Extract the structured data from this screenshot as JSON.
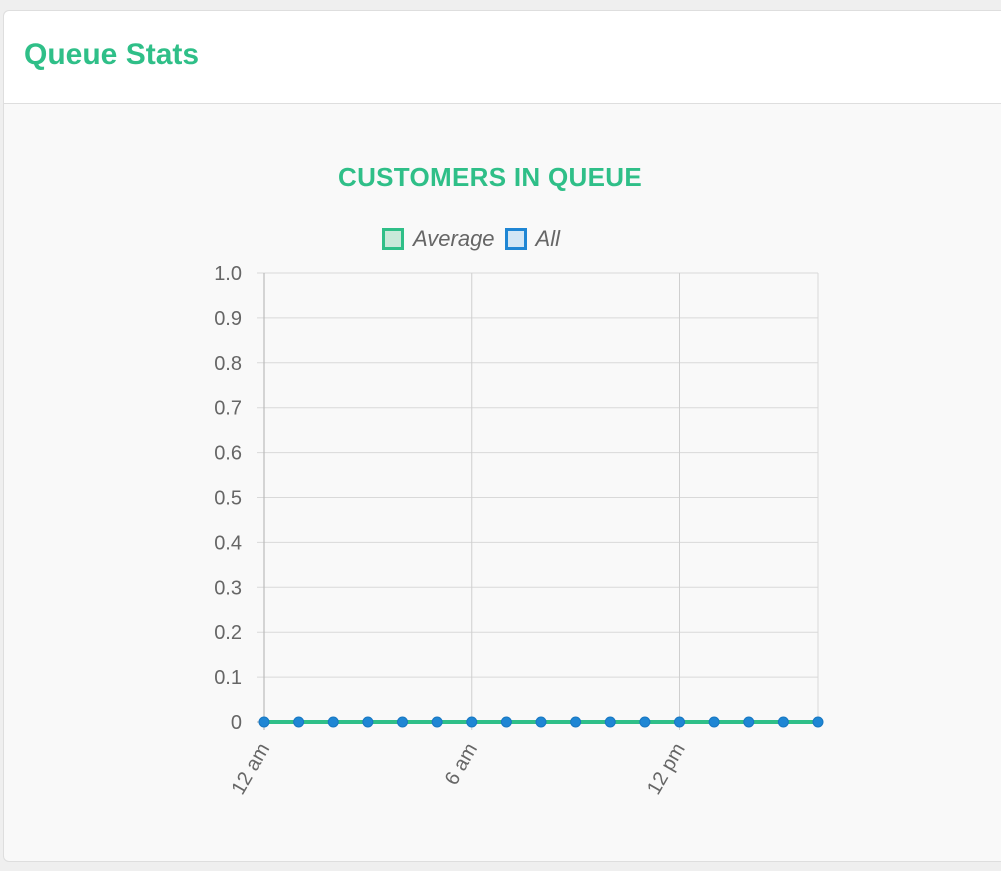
{
  "panel": {
    "title": "Queue Stats"
  },
  "chart_data": {
    "type": "line",
    "title": "CUSTOMERS IN QUEUE",
    "xlabel": "",
    "ylabel": "",
    "ylim": [
      0,
      1
    ],
    "yticks": [
      "1.0",
      "0.9",
      "0.8",
      "0.7",
      "0.6",
      "0.5",
      "0.4",
      "0.3",
      "0.2",
      "0.1",
      "0"
    ],
    "x_tick_labels": [
      "12 am",
      "6 am",
      "12 pm"
    ],
    "grid": true,
    "legend_position": "top",
    "series": [
      {
        "name": "Average",
        "color": "#2fbf88",
        "fill": "#c9e9d9",
        "values": [
          0,
          0,
          0,
          0,
          0,
          0,
          0,
          0,
          0,
          0,
          0,
          0,
          0,
          0,
          0,
          0,
          0
        ]
      },
      {
        "name": "All",
        "color": "#1f86d4",
        "fill": "#d2e6f5",
        "values": [
          0,
          0,
          0,
          0,
          0,
          0,
          0,
          0,
          0,
          0,
          0,
          0,
          0,
          0,
          0,
          0,
          0
        ]
      }
    ]
  }
}
